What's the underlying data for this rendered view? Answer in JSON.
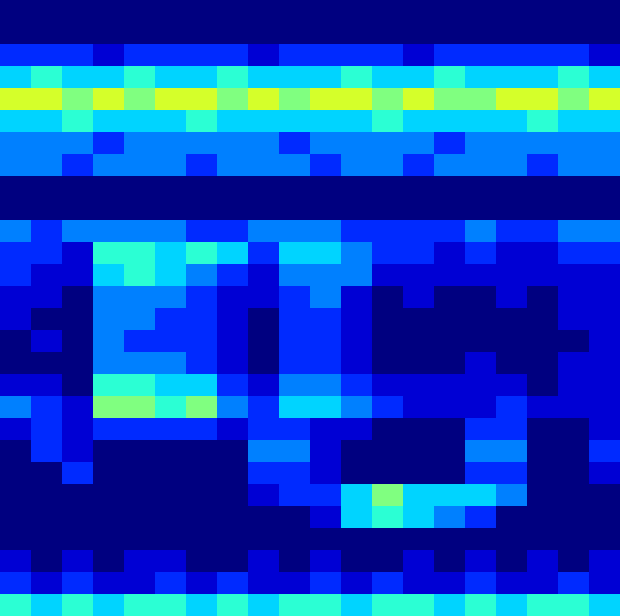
{
  "chart_data": {
    "type": "heatmap",
    "tick_labels": false,
    "zlim": [
      0,
      12
    ],
    "cells": [
      [
        0,
        0,
        0,
        0,
        0,
        0,
        0,
        0,
        0,
        0,
        0,
        0,
        0,
        0,
        0,
        0,
        0,
        0,
        0,
        0
      ],
      [
        0,
        0,
        0,
        0,
        0,
        0,
        0,
        0,
        0,
        0,
        0,
        0,
        0,
        0,
        0,
        0,
        0,
        0,
        0,
        0
      ],
      [
        2,
        2,
        2,
        1,
        2,
        2,
        2,
        2,
        1,
        2,
        2,
        2,
        2,
        1,
        2,
        2,
        2,
        2,
        2,
        1
      ],
      [
        4,
        5,
        4,
        4,
        5,
        4,
        4,
        5,
        4,
        4,
        4,
        5,
        4,
        4,
        5,
        4,
        4,
        4,
        5,
        4
      ],
      [
        7,
        7,
        6,
        7,
        6,
        7,
        7,
        6,
        7,
        6,
        7,
        7,
        6,
        7,
        6,
        6,
        7,
        7,
        6,
        7
      ],
      [
        4,
        4,
        5,
        4,
        4,
        4,
        5,
        4,
        4,
        4,
        4,
        4,
        5,
        4,
        4,
        4,
        4,
        5,
        4,
        4
      ],
      [
        3,
        3,
        3,
        2,
        3,
        3,
        3,
        3,
        3,
        2,
        3,
        3,
        3,
        3,
        2,
        3,
        3,
        3,
        3,
        3
      ],
      [
        3,
        3,
        2,
        3,
        3,
        3,
        2,
        3,
        3,
        3,
        2,
        3,
        3,
        2,
        3,
        3,
        3,
        2,
        3,
        3
      ],
      [
        0,
        0,
        0,
        0,
        0,
        0,
        0,
        0,
        0,
        0,
        0,
        0,
        0,
        0,
        0,
        0,
        0,
        0,
        0,
        0
      ],
      [
        0,
        0,
        0,
        0,
        0,
        0,
        0,
        0,
        0,
        0,
        0,
        0,
        0,
        0,
        0,
        0,
        0,
        0,
        0,
        0
      ],
      [
        3,
        2,
        3,
        3,
        3,
        3,
        2,
        2,
        3,
        3,
        3,
        2,
        2,
        2,
        2,
        3,
        2,
        2,
        3,
        3
      ],
      [
        2,
        2,
        1,
        5,
        5,
        4,
        5,
        4,
        2,
        4,
        4,
        3,
        2,
        2,
        1,
        2,
        1,
        1,
        2,
        2
      ],
      [
        2,
        1,
        1,
        4,
        5,
        4,
        3,
        2,
        1,
        3,
        3,
        3,
        1,
        1,
        1,
        1,
        1,
        1,
        1,
        1
      ],
      [
        1,
        1,
        0,
        3,
        3,
        3,
        2,
        1,
        1,
        2,
        3,
        1,
        0,
        1,
        0,
        0,
        1,
        0,
        1,
        1
      ],
      [
        1,
        0,
        0,
        3,
        3,
        2,
        2,
        1,
        0,
        2,
        2,
        1,
        0,
        0,
        0,
        0,
        0,
        0,
        1,
        1
      ],
      [
        0,
        1,
        0,
        3,
        2,
        2,
        2,
        1,
        0,
        2,
        2,
        1,
        0,
        0,
        0,
        0,
        0,
        0,
        0,
        1
      ],
      [
        0,
        0,
        0,
        3,
        3,
        3,
        2,
        1,
        0,
        2,
        2,
        1,
        0,
        0,
        0,
        1,
        0,
        0,
        1,
        1
      ],
      [
        1,
        1,
        0,
        5,
        5,
        4,
        4,
        2,
        1,
        3,
        3,
        2,
        1,
        1,
        1,
        1,
        1,
        0,
        1,
        1
      ],
      [
        3,
        2,
        1,
        6,
        6,
        5,
        6,
        3,
        2,
        4,
        4,
        3,
        2,
        1,
        1,
        1,
        2,
        1,
        1,
        1
      ],
      [
        1,
        2,
        1,
        2,
        2,
        2,
        2,
        1,
        2,
        2,
        1,
        1,
        0,
        0,
        0,
        2,
        2,
        0,
        0,
        1
      ],
      [
        0,
        2,
        1,
        0,
        0,
        0,
        0,
        0,
        3,
        3,
        1,
        0,
        0,
        0,
        0,
        3,
        3,
        0,
        0,
        2
      ],
      [
        0,
        0,
        2,
        0,
        0,
        0,
        0,
        0,
        2,
        2,
        1,
        0,
        0,
        0,
        0,
        2,
        2,
        0,
        0,
        1
      ],
      [
        0,
        0,
        0,
        0,
        0,
        0,
        0,
        0,
        1,
        2,
        2,
        4,
        6,
        4,
        4,
        4,
        3,
        0,
        0,
        0
      ],
      [
        0,
        0,
        0,
        0,
        0,
        0,
        0,
        0,
        0,
        0,
        1,
        4,
        5,
        4,
        3,
        2,
        0,
        0,
        0,
        0
      ],
      [
        0,
        0,
        0,
        0,
        0,
        0,
        0,
        0,
        0,
        0,
        0,
        0,
        0,
        0,
        0,
        0,
        0,
        0,
        0,
        0
      ],
      [
        1,
        0,
        1,
        0,
        1,
        1,
        0,
        0,
        1,
        0,
        1,
        0,
        0,
        1,
        0,
        1,
        0,
        1,
        0,
        1
      ],
      [
        2,
        1,
        2,
        1,
        1,
        2,
        1,
        2,
        1,
        1,
        2,
        1,
        2,
        1,
        1,
        2,
        1,
        1,
        2,
        1
      ],
      [
        5,
        4,
        5,
        4,
        5,
        5,
        4,
        5,
        4,
        5,
        5,
        4,
        5,
        5,
        4,
        5,
        4,
        5,
        5,
        4
      ]
    ]
  }
}
